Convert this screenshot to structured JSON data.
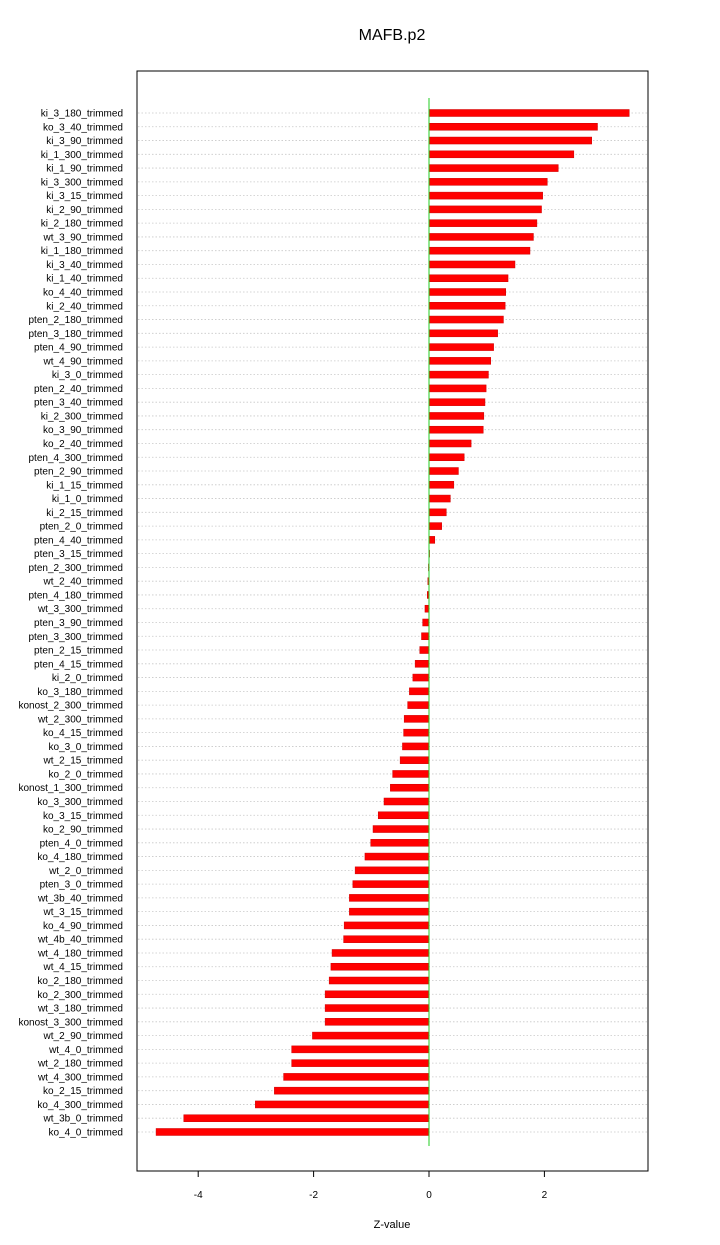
{
  "chart_data": {
    "type": "bar",
    "orientation": "horizontal",
    "title": "MAFB.p2",
    "xlabel": "Z-value",
    "ylabel": "",
    "xlim": [
      -5.1,
      3.8
    ],
    "xticks": [
      -4,
      -2,
      0,
      2
    ],
    "x_tick_labels": [
      "-4",
      "-2",
      "0",
      "2"
    ],
    "grid": "horizontal dotted",
    "zero_line": true,
    "colors": {
      "bar": "#ff0000",
      "bar_edge": "#cc0000",
      "zero_line": "#22cc22",
      "grid": "#c8c8c8",
      "frame": "#000000"
    },
    "categories": [
      "ki_3_180_trimmed",
      "ko_3_40_trimmed",
      "ki_3_90_trimmed",
      "ki_1_300_trimmed",
      "ki_1_90_trimmed",
      "ki_3_300_trimmed",
      "ki_3_15_trimmed",
      "ki_2_90_trimmed",
      "ki_2_180_trimmed",
      "wt_3_90_trimmed",
      "ki_1_180_trimmed",
      "ki_3_40_trimmed",
      "ki_1_40_trimmed",
      "ko_4_40_trimmed",
      "ki_2_40_trimmed",
      "pten_2_180_trimmed",
      "pten_3_180_trimmed",
      "pten_4_90_trimmed",
      "wt_4_90_trimmed",
      "ki_3_0_trimmed",
      "pten_2_40_trimmed",
      "pten_3_40_trimmed",
      "ki_2_300_trimmed",
      "ko_3_90_trimmed",
      "ko_2_40_trimmed",
      "pten_4_300_trimmed",
      "pten_2_90_trimmed",
      "ki_1_15_trimmed",
      "ki_1_0_trimmed",
      "ki_2_15_trimmed",
      "pten_2_0_trimmed",
      "pten_4_40_trimmed",
      "pten_3_15_trimmed",
      "pten_2_300_trimmed",
      "wt_2_40_trimmed",
      "pten_4_180_trimmed",
      "wt_3_300_trimmed",
      "pten_3_90_trimmed",
      "pten_3_300_trimmed",
      "pten_2_15_trimmed",
      "pten_4_15_trimmed",
      "ki_2_0_trimmed",
      "ko_3_180_trimmed",
      "konost_2_300_trimmed",
      "wt_2_300_trimmed",
      "ko_4_15_trimmed",
      "ko_3_0_trimmed",
      "wt_2_15_trimmed",
      "ko_2_0_trimmed",
      "konost_1_300_trimmed",
      "ko_3_300_trimmed",
      "ko_3_15_trimmed",
      "ko_2_90_trimmed",
      "pten_4_0_trimmed",
      "ko_4_180_trimmed",
      "wt_2_0_trimmed",
      "pten_3_0_trimmed",
      "wt_3b_40_trimmed",
      "wt_3_15_trimmed",
      "ko_4_90_trimmed",
      "wt_4b_40_trimmed",
      "wt_4_180_trimmed",
      "wt_4_15_trimmed",
      "ko_2_180_trimmed",
      "ko_2_300_trimmed",
      "wt_3_180_trimmed",
      "konost_3_300_trimmed",
      "wt_2_90_trimmed",
      "wt_4_0_trimmed",
      "wt_2_180_trimmed",
      "wt_4_300_trimmed",
      "ko_2_15_trimmed",
      "ko_4_300_trimmed",
      "wt_3b_0_trimmed",
      "ko_4_0_trimmed"
    ],
    "values": [
      3.47,
      2.92,
      2.82,
      2.51,
      2.24,
      2.05,
      1.97,
      1.95,
      1.87,
      1.81,
      1.75,
      1.49,
      1.37,
      1.33,
      1.32,
      1.29,
      1.19,
      1.12,
      1.07,
      1.03,
      0.99,
      0.97,
      0.95,
      0.94,
      0.73,
      0.61,
      0.51,
      0.43,
      0.37,
      0.3,
      0.22,
      0.1,
      0.01,
      -0.01,
      -0.02,
      -0.03,
      -0.07,
      -0.11,
      -0.13,
      -0.16,
      -0.24,
      -0.28,
      -0.34,
      -0.37,
      -0.43,
      -0.44,
      -0.46,
      -0.5,
      -0.63,
      -0.67,
      -0.78,
      -0.88,
      -0.97,
      -1.01,
      -1.11,
      -1.28,
      -1.32,
      -1.38,
      -1.38,
      -1.47,
      -1.48,
      -1.68,
      -1.7,
      -1.73,
      -1.8,
      -1.8,
      -1.8,
      -2.02,
      -2.38,
      -2.38,
      -2.52,
      -2.68,
      -3.01,
      -4.25,
      -4.73
    ]
  }
}
